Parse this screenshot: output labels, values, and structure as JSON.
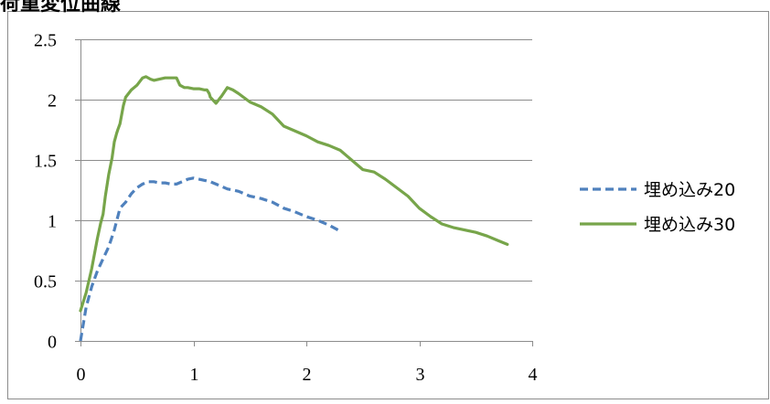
{
  "header": {
    "partial_title": "荷重変位曲線"
  },
  "chart_data": {
    "type": "line",
    "title": "",
    "xlabel": "",
    "ylabel": "",
    "xlim": [
      0,
      4
    ],
    "ylim": [
      0,
      2.5
    ],
    "x_ticks": [
      0,
      1,
      2,
      3,
      4
    ],
    "y_ticks": [
      0,
      0.5,
      1,
      1.5,
      2,
      2.5
    ],
    "x_tick_labels": [
      "0",
      "1",
      "2",
      "3",
      "4"
    ],
    "y_tick_labels": [
      "0",
      "0.5",
      "1",
      "1.5",
      "2",
      "2.5"
    ],
    "grid": {
      "horizontal": true,
      "vertical": false
    },
    "legend_position": "right",
    "series": [
      {
        "name": "埋め込み20",
        "color": "#4f81bd",
        "style": "dashed",
        "x": [
          0,
          0.05,
          0.1,
          0.15,
          0.2,
          0.25,
          0.3,
          0.35,
          0.4,
          0.45,
          0.5,
          0.55,
          0.6,
          0.65,
          0.7,
          0.75,
          0.8,
          0.85,
          0.9,
          0.95,
          1.0,
          1.05,
          1.1,
          1.15,
          1.2,
          1.3,
          1.4,
          1.5,
          1.6,
          1.7,
          1.8,
          1.9,
          2.0,
          2.1,
          2.2,
          2.3
        ],
        "y": [
          0,
          0.28,
          0.45,
          0.58,
          0.68,
          0.78,
          0.92,
          1.1,
          1.15,
          1.22,
          1.27,
          1.3,
          1.32,
          1.32,
          1.31,
          1.31,
          1.3,
          1.3,
          1.32,
          1.34,
          1.35,
          1.34,
          1.33,
          1.32,
          1.3,
          1.26,
          1.24,
          1.2,
          1.18,
          1.15,
          1.1,
          1.07,
          1.03,
          1.0,
          0.96,
          0.91
        ]
      },
      {
        "name": "埋め込み30",
        "color": "#77a54a",
        "style": "solid",
        "x": [
          0,
          0.05,
          0.1,
          0.15,
          0.18,
          0.2,
          0.22,
          0.25,
          0.28,
          0.3,
          0.32,
          0.33,
          0.35,
          0.38,
          0.4,
          0.45,
          0.5,
          0.55,
          0.58,
          0.62,
          0.65,
          0.7,
          0.75,
          0.8,
          0.85,
          0.88,
          0.92,
          0.95,
          1.0,
          1.05,
          1.1,
          1.12,
          1.14,
          1.15,
          1.2,
          1.25,
          1.3,
          1.35,
          1.4,
          1.5,
          1.6,
          1.7,
          1.8,
          2.0,
          2.1,
          2.2,
          2.3,
          2.4,
          2.5,
          2.6,
          2.7,
          2.8,
          2.9,
          3.0,
          3.1,
          3.2,
          3.3,
          3.4,
          3.5,
          3.6,
          3.7,
          3.78
        ],
        "y": [
          0.25,
          0.4,
          0.6,
          0.85,
          0.98,
          1.05,
          1.2,
          1.38,
          1.52,
          1.65,
          1.72,
          1.75,
          1.8,
          1.95,
          2.02,
          2.08,
          2.12,
          2.18,
          2.19,
          2.17,
          2.16,
          2.17,
          2.18,
          2.18,
          2.18,
          2.12,
          2.1,
          2.1,
          2.09,
          2.09,
          2.08,
          2.08,
          2.05,
          2.02,
          1.97,
          2.03,
          2.1,
          2.08,
          2.05,
          1.98,
          1.94,
          1.88,
          1.78,
          1.7,
          1.65,
          1.62,
          1.58,
          1.5,
          1.42,
          1.4,
          1.34,
          1.27,
          1.2,
          1.1,
          1.03,
          0.97,
          0.94,
          0.92,
          0.9,
          0.87,
          0.83,
          0.8
        ]
      }
    ]
  }
}
